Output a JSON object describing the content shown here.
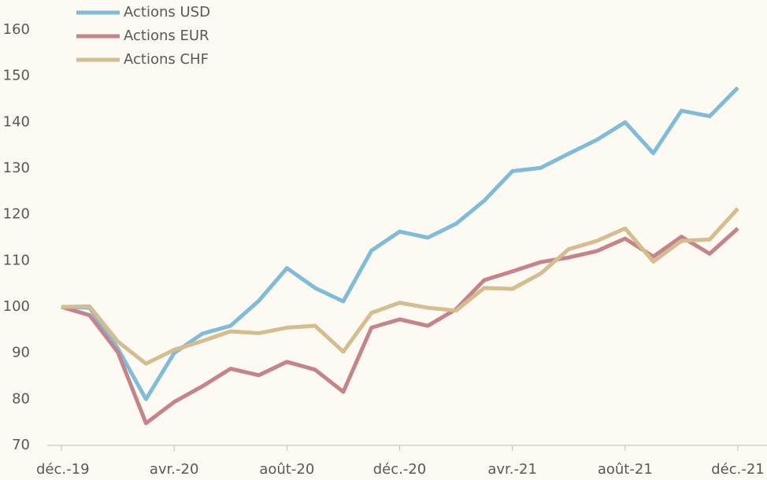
{
  "chart_data": {
    "type": "line",
    "categories": [
      "déc.-19",
      null,
      null,
      null,
      "avr.-20",
      null,
      null,
      null,
      "août-20",
      null,
      null,
      null,
      "déc.-20",
      null,
      null,
      null,
      "avr.-21",
      null,
      null,
      null,
      "août-21",
      null,
      null,
      null,
      "déc.-21"
    ],
    "series": [
      {
        "name": "Actions USD",
        "color": "#80bcd8",
        "values": [
          100,
          99.8,
          91,
          80,
          90,
          94.2,
          95.9,
          101.3,
          108.4,
          104.1,
          101.2,
          112.2,
          116.3,
          115,
          118,
          123,
          129.4,
          130.1,
          133.2,
          136.2,
          140,
          133.3,
          142.5,
          141.3,
          147.5
        ]
      },
      {
        "name": "Actions EUR",
        "color": "#c5848a",
        "values": [
          100,
          98.2,
          90.2,
          74.8,
          79.4,
          82.8,
          86.6,
          85.2,
          88.1,
          86.4,
          81.6,
          95.5,
          97.3,
          95.9,
          99.5,
          105.8,
          107.7,
          109.7,
          110.7,
          112.1,
          114.8,
          110.9,
          115.2,
          111.5,
          117
        ]
      },
      {
        "name": "Actions CHF",
        "color": "#d4bd8f",
        "values": [
          100,
          100.1,
          92.5,
          87.7,
          90.7,
          92.6,
          94.7,
          94.3,
          95.5,
          95.9,
          90.3,
          98.7,
          100.9,
          99.8,
          99.2,
          104.1,
          103.9,
          107.2,
          112.5,
          114.3,
          117,
          109.8,
          114.3,
          114.6,
          121.3
        ]
      }
    ],
    "ylim": [
      70,
      160
    ],
    "yticks": [
      70,
      80,
      90,
      100,
      110,
      120,
      130,
      140,
      150,
      160
    ],
    "grid": false,
    "legend": "upper-left"
  }
}
